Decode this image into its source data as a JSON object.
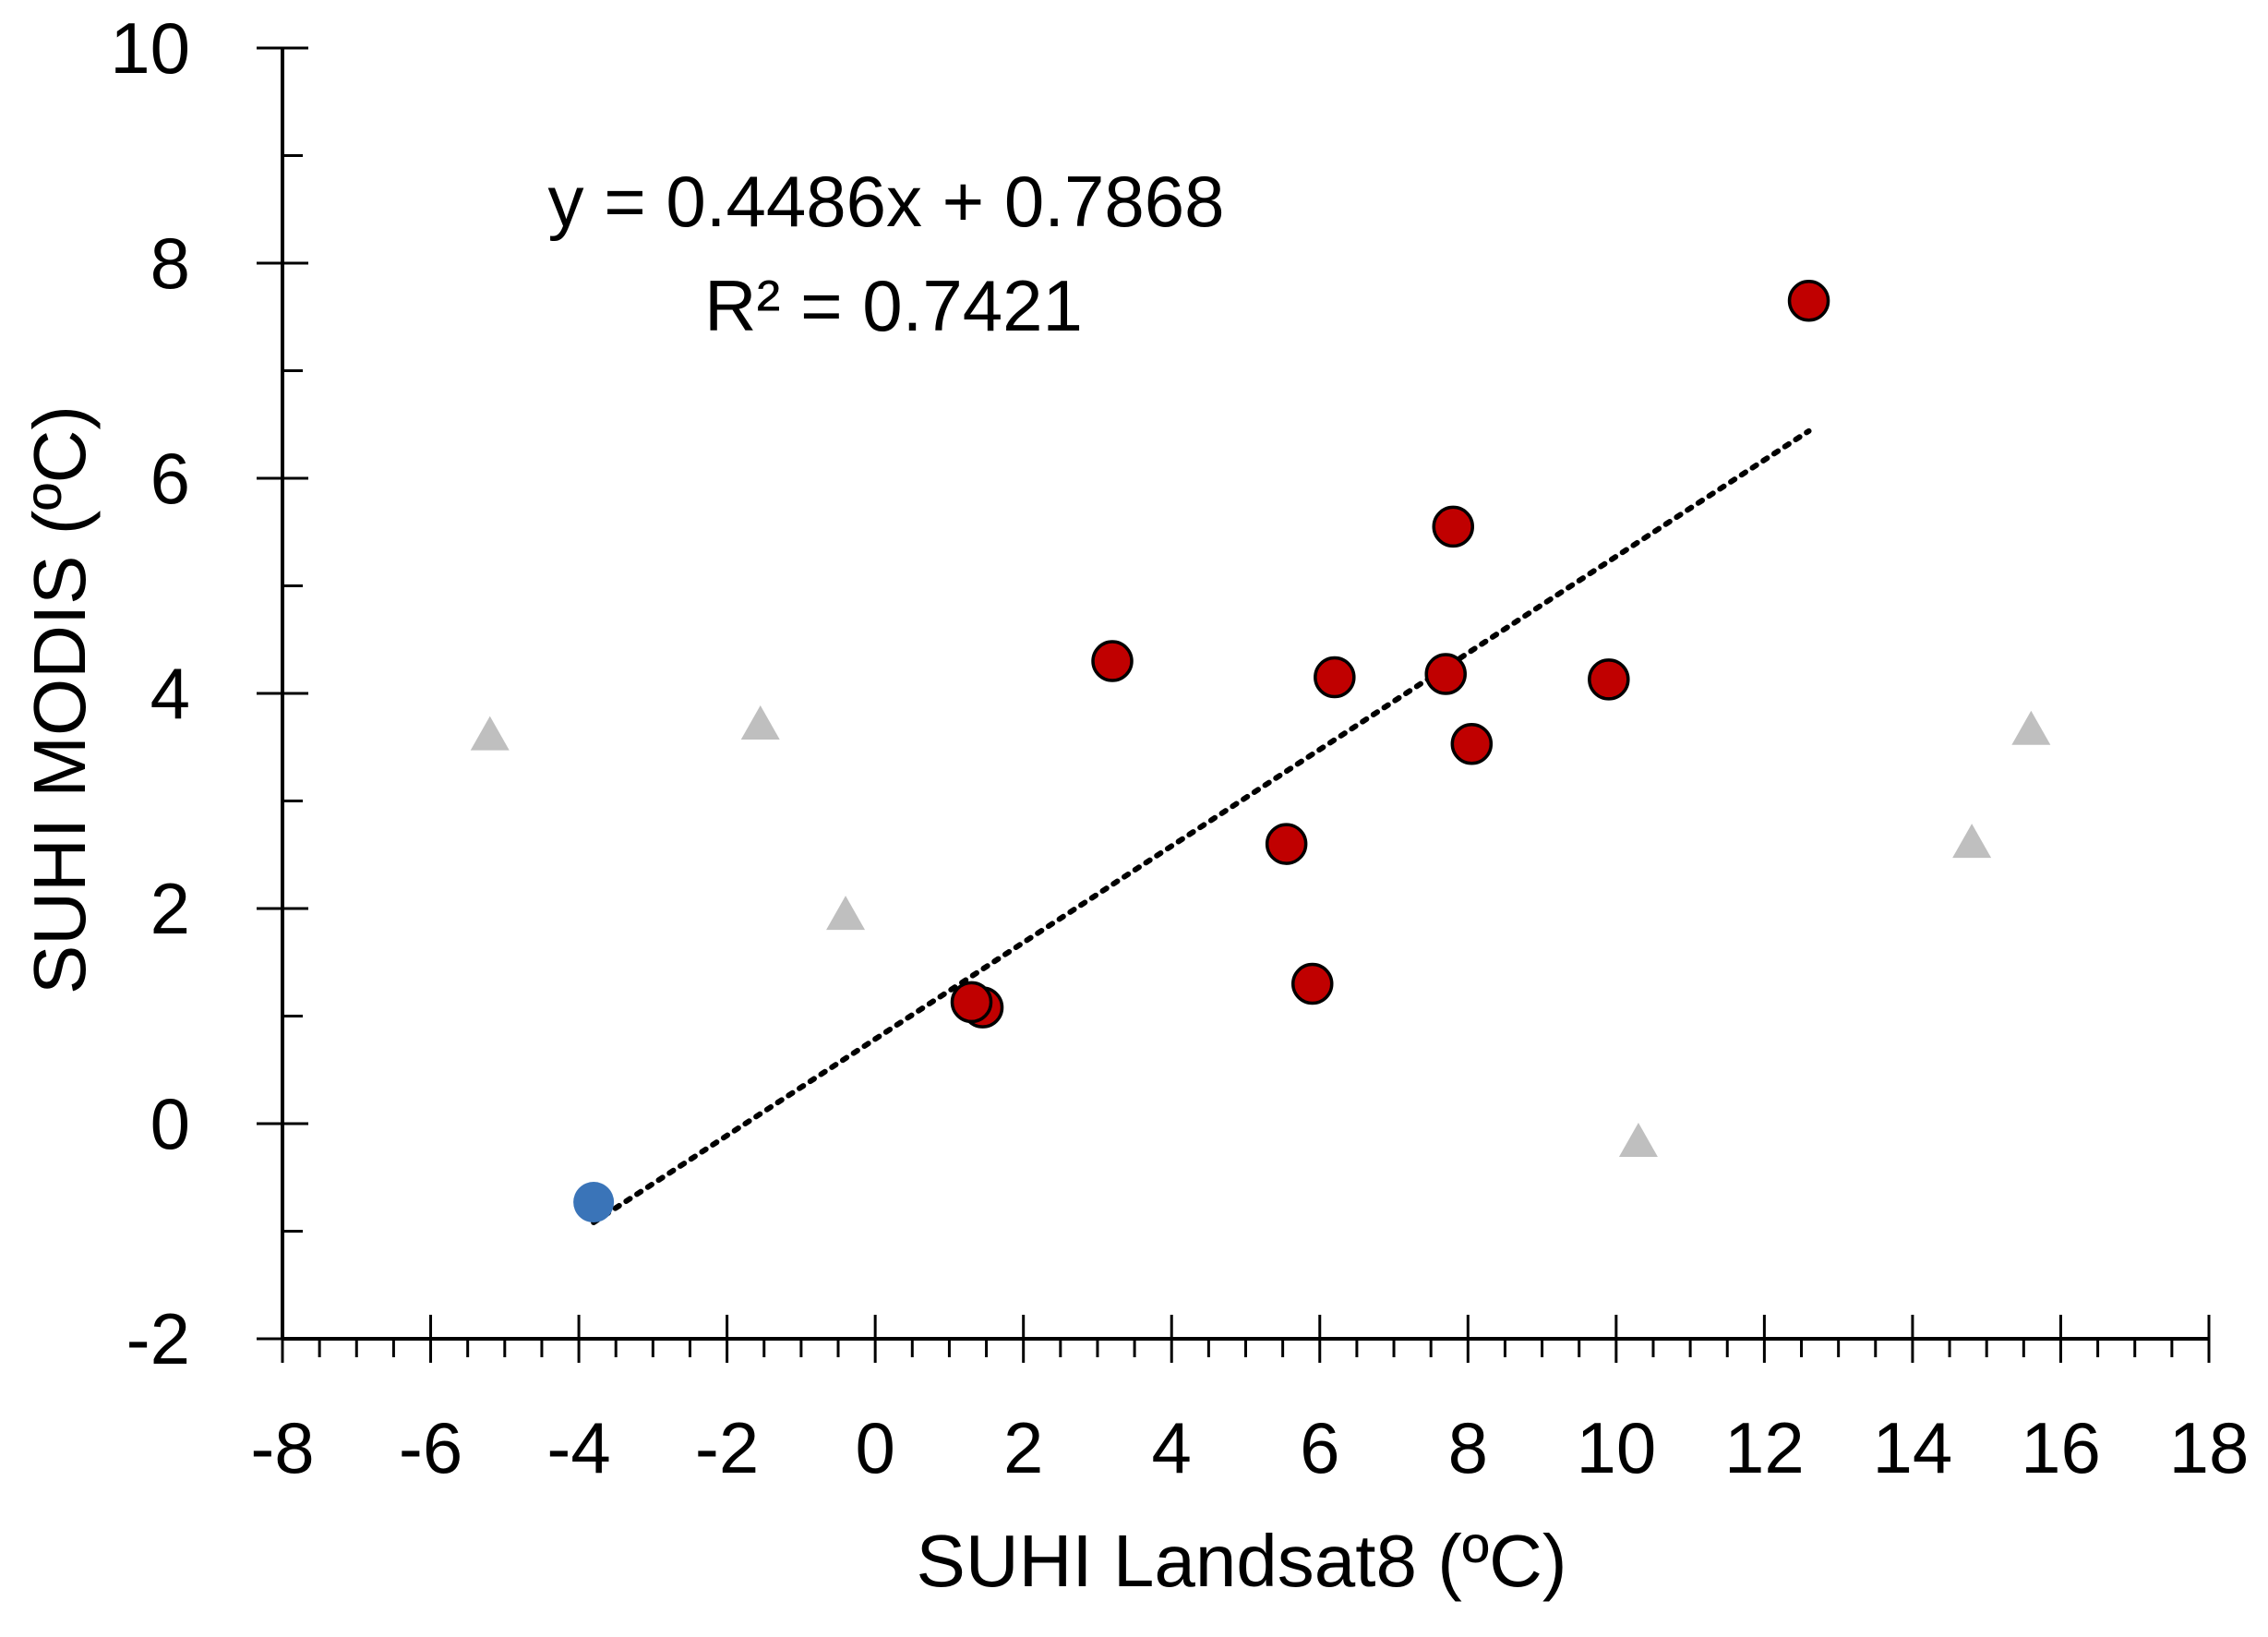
{
  "chart_data": {
    "type": "scatter",
    "title": "",
    "xlabel": "SUHI Landsat8 (ºC)",
    "ylabel": "SUHI MODIS (ºC)",
    "xlim": [
      -8,
      18
    ],
    "ylim": [
      -2,
      10
    ],
    "x_ticks": [
      "-8",
      "-6",
      "-4",
      "-2",
      "0",
      "2",
      "4",
      "6",
      "8",
      "10",
      "12",
      "14",
      "16",
      "18"
    ],
    "y_ticks": [
      "-2",
      "0",
      "2",
      "4",
      "6",
      "8",
      "10"
    ],
    "grid": false,
    "legend": "none",
    "series": [
      {
        "marker": "circle",
        "color": "#c00000",
        "points": [
          {
            "x": 12.6,
            "y": 7.65
          },
          {
            "x": 7.8,
            "y": 5.55
          },
          {
            "x": 3.2,
            "y": 4.3
          },
          {
            "x": 6.2,
            "y": 4.15
          },
          {
            "x": 7.7,
            "y": 4.18
          },
          {
            "x": 9.9,
            "y": 4.13
          },
          {
            "x": 8.05,
            "y": 3.53
          },
          {
            "x": 5.55,
            "y": 2.6
          },
          {
            "x": 5.9,
            "y": 1.3
          },
          {
            "x": 1.45,
            "y": 1.08
          },
          {
            "x": 1.3,
            "y": 1.13
          }
        ]
      },
      {
        "marker": "circle",
        "color": "#3a74b8",
        "points": [
          {
            "x": -3.8,
            "y": -0.73
          }
        ]
      },
      {
        "marker": "triangle",
        "color": "#bfbfbf",
        "points": [
          {
            "x": -5.2,
            "y": 3.6
          },
          {
            "x": -1.55,
            "y": 3.7
          },
          {
            "x": -0.4,
            "y": 1.93
          },
          {
            "x": 10.3,
            "y": -0.18
          },
          {
            "x": 14.8,
            "y": 2.6
          },
          {
            "x": 15.6,
            "y": 3.65
          }
        ]
      }
    ],
    "trendline": {
      "style": "dotted",
      "color": "#000000",
      "slope": 0.4486,
      "intercept": 0.7868,
      "x_range": [
        -3.8,
        12.6
      ]
    },
    "annotations": {
      "equation": "y = 0.4486x + 0.7868",
      "r_squared": "R² = 0.7421"
    }
  }
}
